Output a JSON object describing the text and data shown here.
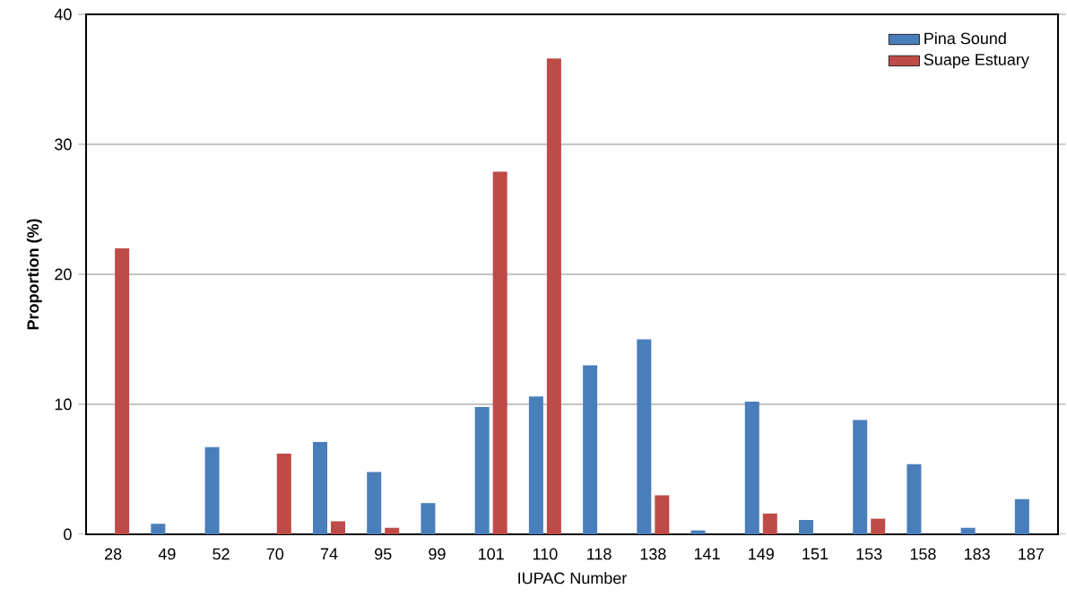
{
  "chart_data": {
    "type": "bar",
    "xlabel": "IUPAC Number",
    "ylabel": "Proportion (%)",
    "categories": [
      "28",
      "49",
      "52",
      "70",
      "74",
      "95",
      "99",
      "101",
      "110",
      "118",
      "138",
      "141",
      "149",
      "151",
      "153",
      "158",
      "183",
      "187"
    ],
    "series": [
      {
        "name": "Pina Sound",
        "color": "#4a7ebb",
        "values": [
          0,
          0.8,
          6.7,
          0,
          7.1,
          4.8,
          2.4,
          9.8,
          10.6,
          13,
          15,
          0.3,
          10.2,
          1.1,
          8.8,
          5.4,
          0.5,
          2.7
        ]
      },
      {
        "name": "Suape Estuary",
        "color": "#be4b48",
        "values": [
          22,
          0,
          0,
          6.2,
          1.0,
          0.5,
          0,
          27.9,
          36.6,
          0,
          3,
          0,
          1.6,
          0,
          1.2,
          0,
          0,
          0
        ]
      }
    ],
    "ylim": [
      0,
      40
    ],
    "yticks": [
      0,
      10,
      20,
      30,
      40
    ],
    "grid": "y",
    "legend": "top right"
  }
}
